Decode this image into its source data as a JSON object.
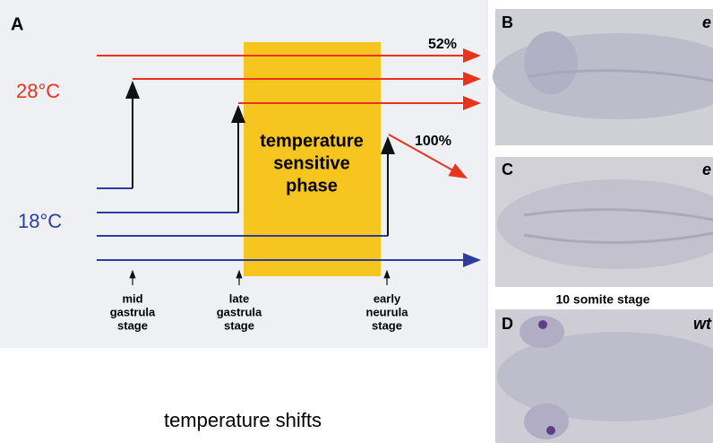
{
  "panel_a": {
    "label": "A",
    "temp_high": "28°C",
    "temp_low": "18°C",
    "phase": [
      "temperature",
      "sensitive",
      "phase"
    ],
    "pct_top": "52%",
    "pct_shift": "100%",
    "stages": [
      [
        "mid",
        "gastrula",
        "stage"
      ],
      [
        "late",
        "gastrula",
        "stage"
      ],
      [
        "early",
        "neurula",
        "stage"
      ]
    ],
    "caption": "temperature shifts"
  },
  "panels": [
    {
      "label": "B",
      "tag": "e"
    },
    {
      "label": "C",
      "tag": "e"
    },
    {
      "label": "D",
      "tag": "wt"
    }
  ],
  "middle_caption": "10 somite stage"
}
